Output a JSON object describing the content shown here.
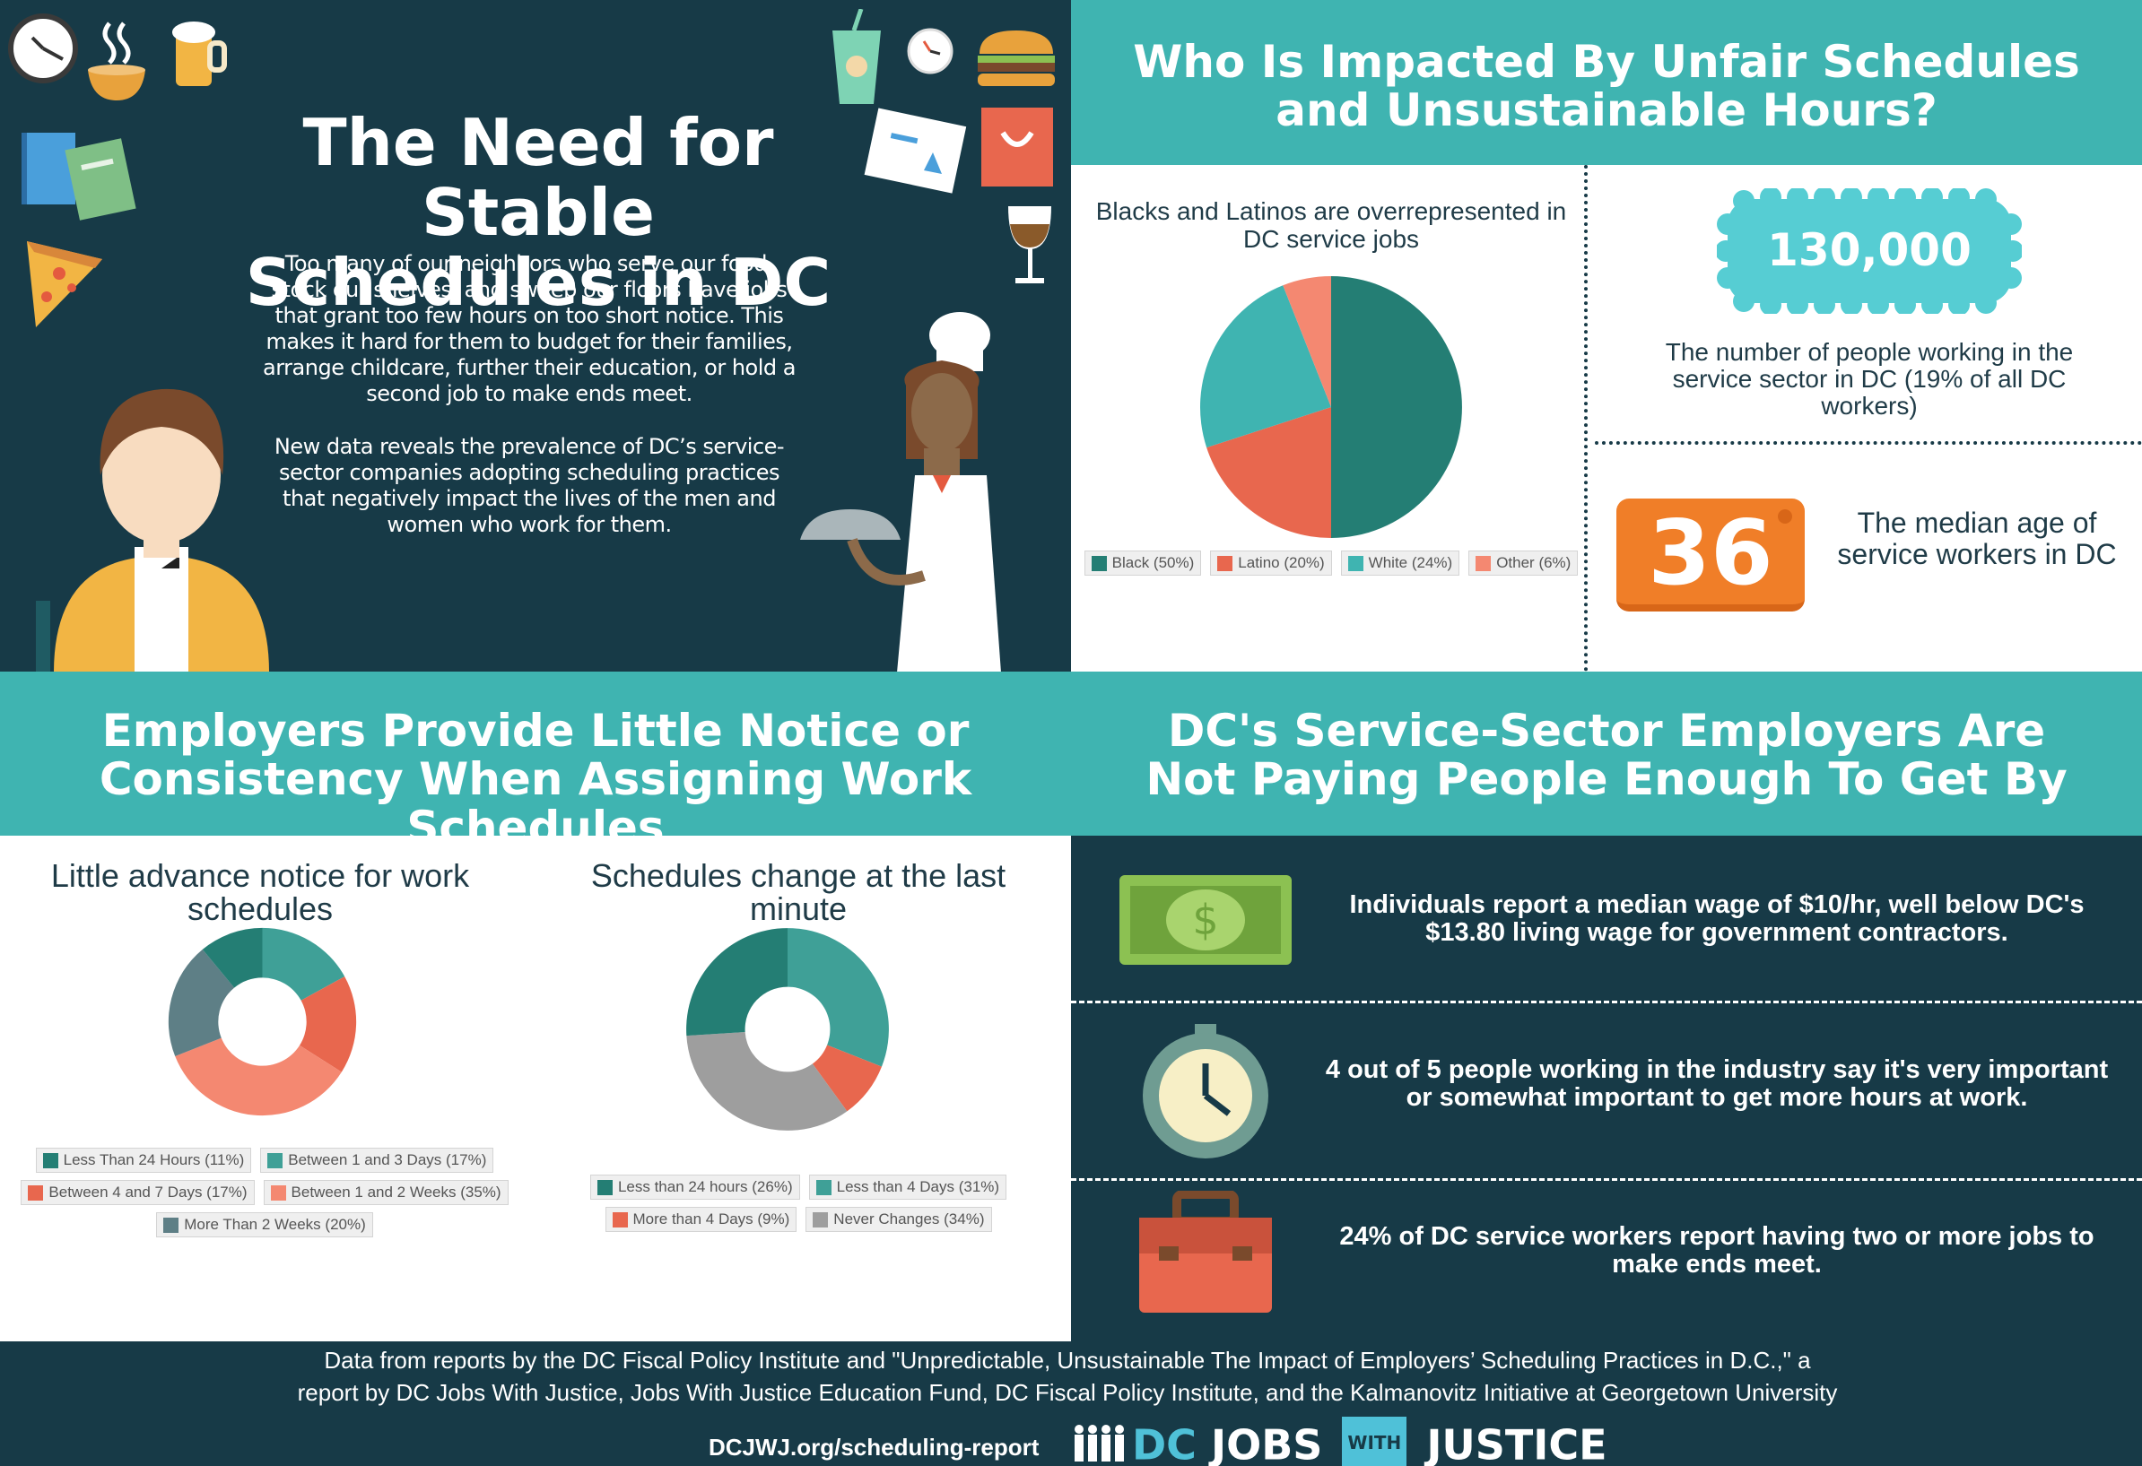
{
  "hero": {
    "title_line1": "The Need for Stable",
    "title_line2": "Schedules in DC",
    "paragraph1": "Too many of our neighbors who serve our food, stock our shelves, and sweep our floors have jobs that grant too few hours on too short notice. This makes it hard for them to budget for their families, arrange childcare, further their education, or hold a second job to make ends meet.",
    "paragraph2": "New data reveals the prevalence of DC’s service-sector companies adopting scheduling practices that negatively impact the lives of the men and women who work for them."
  },
  "impact": {
    "title_line1": "Who Is Impacted By Unfair Schedules",
    "title_line2": "and Unsustainable Hours?",
    "stat1_value": "130,000",
    "stat1_caption": "The number of people working in the service sector in DC (19% of all DC workers)",
    "stat2_value": "36",
    "stat2_caption": "The median age of service workers in DC"
  },
  "notice": {
    "title_line1": "Employers Provide Little Notice or",
    "title_line2": "Consistency When Assigning Work Schedules"
  },
  "pay": {
    "title_line1": "DC's Service-Sector Employers Are",
    "title_line2": "Not Paying People Enough To Get By",
    "item1": "Individuals report a median wage of $10/hr, well below DC's $13.80 living wage for government contractors.",
    "item2": "4 out of 5 people working in the industry say it's very important or somewhat important to get more hours at work.",
    "item3": "24% of DC service workers report having two or more jobs to make ends meet."
  },
  "footer": {
    "line1": "Data from reports by the DC Fiscal Policy Institute and \"Unpredictable, Unsustainable The Impact of Employers’ Scheduling Practices in D.C.,\" a",
    "line2": "report by DC Jobs With Justice, Jobs With Justice Education Fund, DC Fiscal Policy Institute, and the Kalmanovitz Initiative at Georgetown University",
    "url": "DCJWJ.org/scheduling-report",
    "logo_dc": "DC",
    "logo_jobs": "JOBS",
    "logo_with": "WITH",
    "logo_justice": "JUSTICE"
  },
  "chart_data": [
    {
      "type": "pie",
      "title": "Blacks and Latinos are overrepresented in DC service jobs",
      "labels": [
        "Black (50%)",
        "Latino (20%)",
        "White (24%)",
        "Other (6%)"
      ],
      "values": [
        50,
        20,
        24,
        6
      ],
      "colors": [
        "#247e74",
        "#e8674e",
        "#3fb4b1",
        "#f48871"
      ]
    },
    {
      "type": "pie",
      "subtype": "donut",
      "title": "Little advance notice for work schedules",
      "labels": [
        "Less Than 24 Hours (11%)",
        "Between 1 and 3 Days (17%)",
        "Between 4 and 7 Days (17%)",
        "Between 1 and 2 Weeks (35%)",
        "More Than 2 Weeks (20%)"
      ],
      "values": [
        11,
        17,
        17,
        35,
        20
      ],
      "colors": [
        "#247e74",
        "#3fa097",
        "#e8674e",
        "#f48871",
        "#5e7f86"
      ],
      "slice_order": [
        1,
        2,
        3,
        4,
        0
      ]
    },
    {
      "type": "pie",
      "subtype": "donut",
      "title": "Schedules change at the last minute",
      "labels": [
        "Less than 24 hours (26%)",
        "Less than 4 Days (31%)",
        "More than 4 Days (9%)",
        "Never Changes (34%)"
      ],
      "values": [
        26,
        31,
        9,
        34
      ],
      "colors": [
        "#247e74",
        "#3fa097",
        "#e8674e",
        "#9e9e9e"
      ],
      "slice_order": [
        1,
        2,
        3,
        0
      ]
    }
  ]
}
